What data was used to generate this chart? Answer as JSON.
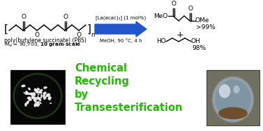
{
  "bg_color": "#ffffff",
  "arrow_color": "#2255cc",
  "green_text_color": "#22bb00",
  "reaction_conditions_line1": "[La(acac)₃] (1 mol%)",
  "reaction_conditions_line2": "MeOH, 90 °C, 4 h",
  "yield1": ">99%",
  "yield2": "98%",
  "plus_sign": "+",
  "polymer_name_line1": "poly(butylene succinate) (PBS)",
  "green_text_lines": [
    "Chemical",
    "Recycling",
    "by",
    "Transesterification"
  ],
  "figure_width": 3.77,
  "figure_height": 1.89,
  "dpi": 100
}
